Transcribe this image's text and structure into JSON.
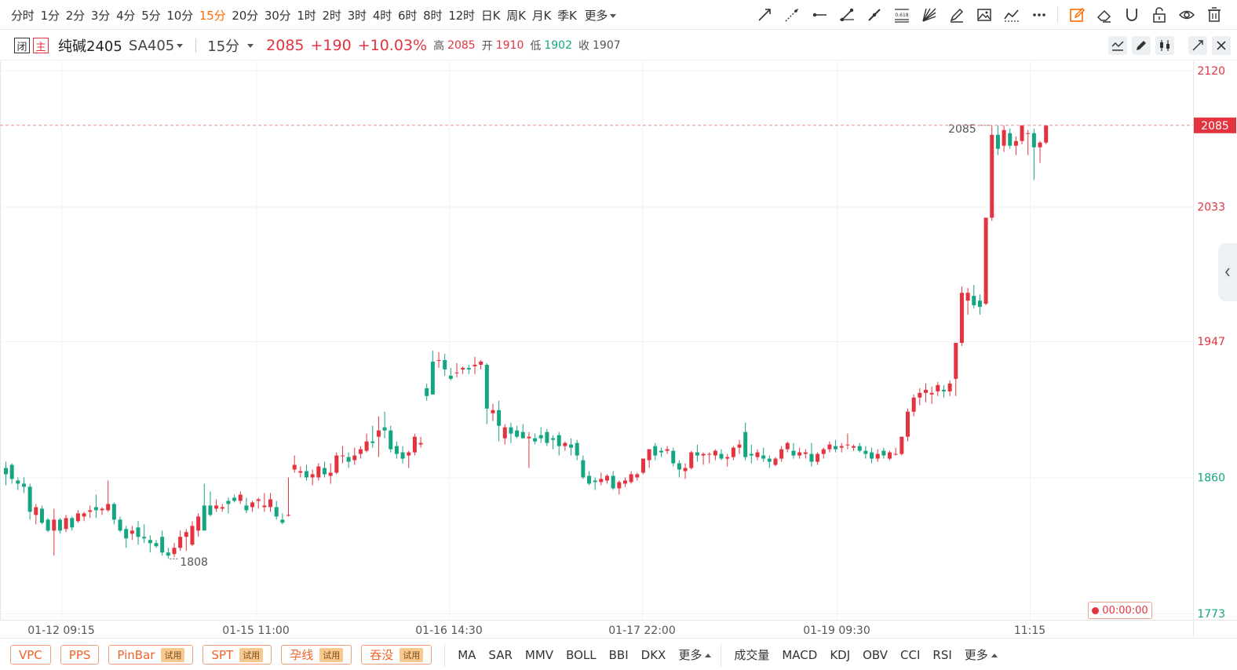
{
  "toolbar": {
    "periods": [
      "分时",
      "1分",
      "2分",
      "3分",
      "4分",
      "5分",
      "10分",
      "15分",
      "20分",
      "30分",
      "1时",
      "2时",
      "3时",
      "4时",
      "6时",
      "8时",
      "12时",
      "日K",
      "周K",
      "月K",
      "季K"
    ],
    "active_period": "15分",
    "more_label": "更多",
    "tools": [
      "trend-line-icon",
      "ray-line-icon",
      "horizontal-segment-icon",
      "segment-icon",
      "brush-line-icon",
      "fibonacci-icon",
      "gann-fan-icon",
      "pen-icon",
      "image-icon",
      "polyline-icon",
      "more-dots-icon",
      "edit-icon",
      "eraser-icon",
      "magnet-icon",
      "lock-icon",
      "eye-icon",
      "trash-icon"
    ],
    "fib_text": "0.618",
    "accent_color": "#ff6a00"
  },
  "symbol": {
    "badge_closed": "闭",
    "badge_main": "主",
    "name": "纯碱2405",
    "code": "SA405",
    "timeframe": "15分",
    "price": "2085",
    "change": "+190",
    "change_pct": "+10.03%",
    "high_label": "高",
    "high": "2085",
    "open_label": "开",
    "open": "1910",
    "low_label": "低",
    "low": "1902",
    "close_label": "收",
    "close": "1907"
  },
  "chart_data": {
    "type": "candlestick",
    "x_labels": [
      "01-12 09:15",
      "01-15 11:00",
      "01-16 14:30",
      "01-17 22:00",
      "01-19 09:30",
      "11:15"
    ],
    "y_ticks": [
      2120,
      2033,
      1947,
      1860,
      1773
    ],
    "y_range": [
      1773,
      2120
    ],
    "last_price": 2085,
    "annotations": {
      "max": "2085",
      "min": "1808"
    },
    "timer": "00:00:00",
    "colors": {
      "up": "#e2333f",
      "down": "#14a582",
      "grid": "#f0f2f5",
      "last_line": "#f08a8a"
    },
    "candles": [
      {
        "o": 1866,
        "h": 1870,
        "l": 1855,
        "c": 1862
      },
      {
        "o": 1868,
        "h": 1869,
        "l": 1856,
        "c": 1859
      },
      {
        "o": 1858,
        "h": 1860,
        "l": 1852,
        "c": 1856
      },
      {
        "o": 1856,
        "h": 1860,
        "l": 1850,
        "c": 1854
      },
      {
        "o": 1854,
        "h": 1856,
        "l": 1833,
        "c": 1838
      },
      {
        "o": 1836,
        "h": 1843,
        "l": 1830,
        "c": 1841
      },
      {
        "o": 1840,
        "h": 1842,
        "l": 1830,
        "c": 1831
      },
      {
        "o": 1833,
        "h": 1834,
        "l": 1825,
        "c": 1826
      },
      {
        "o": 1826,
        "h": 1840,
        "l": 1810,
        "c": 1833
      },
      {
        "o": 1833,
        "h": 1834,
        "l": 1824,
        "c": 1826
      },
      {
        "o": 1827,
        "h": 1836,
        "l": 1825,
        "c": 1834
      },
      {
        "o": 1834,
        "h": 1835,
        "l": 1826,
        "c": 1828
      },
      {
        "o": 1832,
        "h": 1839,
        "l": 1831,
        "c": 1837
      },
      {
        "o": 1835,
        "h": 1838,
        "l": 1832,
        "c": 1837
      },
      {
        "o": 1838,
        "h": 1842,
        "l": 1834,
        "c": 1839
      },
      {
        "o": 1841,
        "h": 1849,
        "l": 1834,
        "c": 1839
      },
      {
        "o": 1839,
        "h": 1841,
        "l": 1836,
        "c": 1840
      },
      {
        "o": 1839,
        "h": 1858,
        "l": 1838,
        "c": 1843
      },
      {
        "o": 1843,
        "h": 1844,
        "l": 1830,
        "c": 1833
      },
      {
        "o": 1833,
        "h": 1835,
        "l": 1825,
        "c": 1826
      },
      {
        "o": 1827,
        "h": 1829,
        "l": 1815,
        "c": 1821
      },
      {
        "o": 1824,
        "h": 1829,
        "l": 1820,
        "c": 1826
      },
      {
        "o": 1828,
        "h": 1832,
        "l": 1817,
        "c": 1822
      },
      {
        "o": 1822,
        "h": 1830,
        "l": 1818,
        "c": 1821
      },
      {
        "o": 1820,
        "h": 1823,
        "l": 1812,
        "c": 1818
      },
      {
        "o": 1818,
        "h": 1820,
        "l": 1815,
        "c": 1816
      },
      {
        "o": 1822,
        "h": 1826,
        "l": 1810,
        "c": 1812
      },
      {
        "o": 1812,
        "h": 1815,
        "l": 1808,
        "c": 1810
      },
      {
        "o": 1811,
        "h": 1818,
        "l": 1809,
        "c": 1815
      },
      {
        "o": 1815,
        "h": 1826,
        "l": 1813,
        "c": 1822
      },
      {
        "o": 1822,
        "h": 1827,
        "l": 1813,
        "c": 1825
      },
      {
        "o": 1817,
        "h": 1832,
        "l": 1816,
        "c": 1829
      },
      {
        "o": 1826,
        "h": 1837,
        "l": 1822,
        "c": 1835
      },
      {
        "o": 1842,
        "h": 1856,
        "l": 1828,
        "c": 1826
      },
      {
        "o": 1842,
        "h": 1851,
        "l": 1835,
        "c": 1836
      },
      {
        "o": 1840,
        "h": 1846,
        "l": 1838,
        "c": 1842
      },
      {
        "o": 1840,
        "h": 1843,
        "l": 1838,
        "c": 1841
      },
      {
        "o": 1845,
        "h": 1847,
        "l": 1837,
        "c": 1843
      },
      {
        "o": 1847,
        "h": 1849,
        "l": 1844,
        "c": 1845
      },
      {
        "o": 1845,
        "h": 1851,
        "l": 1843,
        "c": 1849
      },
      {
        "o": 1842,
        "h": 1847,
        "l": 1837,
        "c": 1839
      },
      {
        "o": 1841,
        "h": 1845,
        "l": 1838,
        "c": 1844
      },
      {
        "o": 1845,
        "h": 1847,
        "l": 1840,
        "c": 1846
      },
      {
        "o": 1841,
        "h": 1850,
        "l": 1838,
        "c": 1842
      },
      {
        "o": 1841,
        "h": 1850,
        "l": 1838,
        "c": 1846
      },
      {
        "o": 1841,
        "h": 1845,
        "l": 1833,
        "c": 1835
      },
      {
        "o": 1833,
        "h": 1837,
        "l": 1830,
        "c": 1831
      },
      {
        "o": 1836,
        "h": 1860,
        "l": 1835,
        "c": 1836
      },
      {
        "o": 1865,
        "h": 1874,
        "l": 1863,
        "c": 1868
      },
      {
        "o": 1863,
        "h": 1867,
        "l": 1860,
        "c": 1864
      },
      {
        "o": 1864,
        "h": 1868,
        "l": 1858,
        "c": 1860
      },
      {
        "o": 1860,
        "h": 1865,
        "l": 1855,
        "c": 1862
      },
      {
        "o": 1860,
        "h": 1869,
        "l": 1858,
        "c": 1867
      },
      {
        "o": 1866,
        "h": 1870,
        "l": 1860,
        "c": 1862
      },
      {
        "o": 1861,
        "h": 1869,
        "l": 1856,
        "c": 1863
      },
      {
        "o": 1863,
        "h": 1876,
        "l": 1862,
        "c": 1874
      },
      {
        "o": 1874,
        "h": 1880,
        "l": 1869,
        "c": 1874
      },
      {
        "o": 1873,
        "h": 1876,
        "l": 1866,
        "c": 1870
      },
      {
        "o": 1871,
        "h": 1879,
        "l": 1868,
        "c": 1874
      },
      {
        "o": 1875,
        "h": 1880,
        "l": 1872,
        "c": 1878
      },
      {
        "o": 1877,
        "h": 1888,
        "l": 1876,
        "c": 1883
      },
      {
        "o": 1883,
        "h": 1893,
        "l": 1879,
        "c": 1882
      },
      {
        "o": 1886,
        "h": 1899,
        "l": 1873,
        "c": 1890
      },
      {
        "o": 1892,
        "h": 1902,
        "l": 1885,
        "c": 1890
      },
      {
        "o": 1890,
        "h": 1893,
        "l": 1876,
        "c": 1878
      },
      {
        "o": 1880,
        "h": 1883,
        "l": 1872,
        "c": 1875
      },
      {
        "o": 1876,
        "h": 1880,
        "l": 1869,
        "c": 1872
      },
      {
        "o": 1874,
        "h": 1877,
        "l": 1866,
        "c": 1876
      },
      {
        "o": 1876,
        "h": 1888,
        "l": 1874,
        "c": 1886
      },
      {
        "o": 1881,
        "h": 1886,
        "l": 1879,
        "c": 1882
      },
      {
        "o": 1917,
        "h": 1920,
        "l": 1909,
        "c": 1912
      },
      {
        "o": 1934,
        "h": 1941,
        "l": 1913,
        "c": 1913
      },
      {
        "o": 1935,
        "h": 1940,
        "l": 1930,
        "c": 1935
      },
      {
        "o": 1935,
        "h": 1939,
        "l": 1925,
        "c": 1929
      },
      {
        "o": 1925,
        "h": 1930,
        "l": 1922,
        "c": 1923
      },
      {
        "o": 1927,
        "h": 1933,
        "l": 1924,
        "c": 1927
      },
      {
        "o": 1929,
        "h": 1931,
        "l": 1926,
        "c": 1930
      },
      {
        "o": 1930,
        "h": 1932,
        "l": 1926,
        "c": 1929
      },
      {
        "o": 1931,
        "h": 1937,
        "l": 1926,
        "c": 1932
      },
      {
        "o": 1932,
        "h": 1935,
        "l": 1929,
        "c": 1934
      },
      {
        "o": 1932,
        "h": 1933,
        "l": 1894,
        "c": 1904
      },
      {
        "o": 1901,
        "h": 1907,
        "l": 1896,
        "c": 1903
      },
      {
        "o": 1903,
        "h": 1909,
        "l": 1883,
        "c": 1893
      },
      {
        "o": 1885,
        "h": 1894,
        "l": 1881,
        "c": 1892
      },
      {
        "o": 1892,
        "h": 1895,
        "l": 1882,
        "c": 1888
      },
      {
        "o": 1890,
        "h": 1893,
        "l": 1885,
        "c": 1886
      },
      {
        "o": 1889,
        "h": 1894,
        "l": 1886,
        "c": 1885
      },
      {
        "o": 1885,
        "h": 1889,
        "l": 1866,
        "c": 1886
      },
      {
        "o": 1885,
        "h": 1888,
        "l": 1881,
        "c": 1883
      },
      {
        "o": 1887,
        "h": 1892,
        "l": 1882,
        "c": 1885
      },
      {
        "o": 1889,
        "h": 1891,
        "l": 1880,
        "c": 1882
      },
      {
        "o": 1885,
        "h": 1887,
        "l": 1878,
        "c": 1884
      },
      {
        "o": 1887,
        "h": 1889,
        "l": 1874,
        "c": 1880
      },
      {
        "o": 1880,
        "h": 1883,
        "l": 1877,
        "c": 1882
      },
      {
        "o": 1881,
        "h": 1885,
        "l": 1874,
        "c": 1879
      },
      {
        "o": 1882,
        "h": 1884,
        "l": 1871,
        "c": 1874
      },
      {
        "o": 1871,
        "h": 1874,
        "l": 1859,
        "c": 1860
      },
      {
        "o": 1861,
        "h": 1864,
        "l": 1855,
        "c": 1856
      },
      {
        "o": 1858,
        "h": 1860,
        "l": 1852,
        "c": 1857
      },
      {
        "o": 1857,
        "h": 1863,
        "l": 1855,
        "c": 1859
      },
      {
        "o": 1858,
        "h": 1862,
        "l": 1856,
        "c": 1861
      },
      {
        "o": 1861,
        "h": 1864,
        "l": 1852,
        "c": 1853
      },
      {
        "o": 1853,
        "h": 1858,
        "l": 1849,
        "c": 1857
      },
      {
        "o": 1856,
        "h": 1860,
        "l": 1854,
        "c": 1858
      },
      {
        "o": 1857,
        "h": 1864,
        "l": 1856,
        "c": 1862
      },
      {
        "o": 1860,
        "h": 1863,
        "l": 1858,
        "c": 1862
      },
      {
        "o": 1863,
        "h": 1872,
        "l": 1862,
        "c": 1872
      },
      {
        "o": 1871,
        "h": 1878,
        "l": 1866,
        "c": 1878
      },
      {
        "o": 1880,
        "h": 1882,
        "l": 1871,
        "c": 1874
      },
      {
        "o": 1877,
        "h": 1879,
        "l": 1873,
        "c": 1876
      },
      {
        "o": 1877,
        "h": 1880,
        "l": 1875,
        "c": 1878
      },
      {
        "o": 1877,
        "h": 1879,
        "l": 1867,
        "c": 1869
      },
      {
        "o": 1869,
        "h": 1871,
        "l": 1860,
        "c": 1865
      },
      {
        "o": 1864,
        "h": 1869,
        "l": 1859,
        "c": 1866
      },
      {
        "o": 1866,
        "h": 1877,
        "l": 1865,
        "c": 1876
      },
      {
        "o": 1876,
        "h": 1881,
        "l": 1870,
        "c": 1874
      },
      {
        "o": 1874,
        "h": 1876,
        "l": 1868,
        "c": 1875
      },
      {
        "o": 1875,
        "h": 1876,
        "l": 1869,
        "c": 1875
      },
      {
        "o": 1874,
        "h": 1878,
        "l": 1871,
        "c": 1877
      },
      {
        "o": 1875,
        "h": 1878,
        "l": 1871,
        "c": 1872
      },
      {
        "o": 1872,
        "h": 1875,
        "l": 1867,
        "c": 1873
      },
      {
        "o": 1873,
        "h": 1880,
        "l": 1871,
        "c": 1879
      },
      {
        "o": 1879,
        "h": 1884,
        "l": 1875,
        "c": 1881
      },
      {
        "o": 1889,
        "h": 1895,
        "l": 1871,
        "c": 1873
      },
      {
        "o": 1875,
        "h": 1881,
        "l": 1869,
        "c": 1874
      },
      {
        "o": 1873,
        "h": 1878,
        "l": 1871,
        "c": 1876
      },
      {
        "o": 1874,
        "h": 1879,
        "l": 1870,
        "c": 1872
      },
      {
        "o": 1872,
        "h": 1874,
        "l": 1866,
        "c": 1870
      },
      {
        "o": 1868,
        "h": 1873,
        "l": 1867,
        "c": 1872
      },
      {
        "o": 1872,
        "h": 1880,
        "l": 1870,
        "c": 1878
      },
      {
        "o": 1878,
        "h": 1883,
        "l": 1876,
        "c": 1882
      },
      {
        "o": 1877,
        "h": 1882,
        "l": 1872,
        "c": 1874
      },
      {
        "o": 1874,
        "h": 1879,
        "l": 1872,
        "c": 1876
      },
      {
        "o": 1875,
        "h": 1878,
        "l": 1872,
        "c": 1876
      },
      {
        "o": 1875,
        "h": 1882,
        "l": 1867,
        "c": 1870
      },
      {
        "o": 1870,
        "h": 1876,
        "l": 1868,
        "c": 1875
      },
      {
        "o": 1875,
        "h": 1879,
        "l": 1872,
        "c": 1878
      },
      {
        "o": 1878,
        "h": 1883,
        "l": 1876,
        "c": 1881
      },
      {
        "o": 1880,
        "h": 1884,
        "l": 1876,
        "c": 1878
      },
      {
        "o": 1879,
        "h": 1882,
        "l": 1876,
        "c": 1880
      },
      {
        "o": 1881,
        "h": 1888,
        "l": 1878,
        "c": 1881
      },
      {
        "o": 1879,
        "h": 1881,
        "l": 1877,
        "c": 1880
      },
      {
        "o": 1880,
        "h": 1882,
        "l": 1876,
        "c": 1877
      },
      {
        "o": 1877,
        "h": 1880,
        "l": 1872,
        "c": 1875
      },
      {
        "o": 1876,
        "h": 1879,
        "l": 1869,
        "c": 1872
      },
      {
        "o": 1872,
        "h": 1878,
        "l": 1870,
        "c": 1875
      },
      {
        "o": 1877,
        "h": 1879,
        "l": 1872,
        "c": 1874
      },
      {
        "o": 1872,
        "h": 1877,
        "l": 1871,
        "c": 1876
      },
      {
        "o": 1875,
        "h": 1879,
        "l": 1874,
        "c": 1875
      },
      {
        "o": 1875,
        "h": 1886,
        "l": 1874,
        "c": 1886
      },
      {
        "o": 1886,
        "h": 1904,
        "l": 1883,
        "c": 1902
      },
      {
        "o": 1902,
        "h": 1913,
        "l": 1899,
        "c": 1911
      },
      {
        "o": 1911,
        "h": 1917,
        "l": 1906,
        "c": 1914
      },
      {
        "o": 1914,
        "h": 1920,
        "l": 1908,
        "c": 1916
      },
      {
        "o": 1913,
        "h": 1918,
        "l": 1907,
        "c": 1914
      },
      {
        "o": 1915,
        "h": 1921,
        "l": 1912,
        "c": 1919
      },
      {
        "o": 1916,
        "h": 1919,
        "l": 1911,
        "c": 1915
      },
      {
        "o": 1915,
        "h": 1922,
        "l": 1912,
        "c": 1920
      },
      {
        "o": 1923,
        "h": 1946,
        "l": 1912,
        "c": 1946
      },
      {
        "o": 1946,
        "h": 1982,
        "l": 1944,
        "c": 1978
      },
      {
        "o": 1973,
        "h": 1981,
        "l": 1964,
        "c": 1978
      },
      {
        "o": 1976,
        "h": 1983,
        "l": 1968,
        "c": 1970
      },
      {
        "o": 1973,
        "h": 1977,
        "l": 1964,
        "c": 1969
      },
      {
        "o": 1971,
        "h": 2026,
        "l": 1970,
        "c": 2026
      },
      {
        "o": 2026,
        "h": 2085,
        "l": 2024,
        "c": 2079
      },
      {
        "o": 2079,
        "h": 2085,
        "l": 2066,
        "c": 2070
      },
      {
        "o": 2072,
        "h": 2085,
        "l": 2068,
        "c": 2082
      },
      {
        "o": 2080,
        "h": 2083,
        "l": 2070,
        "c": 2072
      },
      {
        "o": 2072,
        "h": 2078,
        "l": 2066,
        "c": 2075
      },
      {
        "o": 2075,
        "h": 2085,
        "l": 2073,
        "c": 2085
      },
      {
        "o": 2080,
        "h": 2082,
        "l": 2066,
        "c": 2080
      },
      {
        "o": 2080,
        "h": 2083,
        "l": 2050,
        "c": 2071
      },
      {
        "o": 2071,
        "h": 2075,
        "l": 2061,
        "c": 2074
      },
      {
        "o": 2074,
        "h": 2085,
        "l": 2073,
        "c": 2085
      }
    ]
  },
  "bottom": {
    "indicators": [
      {
        "label": "VPC",
        "trial": ""
      },
      {
        "label": "PPS",
        "trial": ""
      },
      {
        "label": "PinBar",
        "trial": "试用"
      },
      {
        "label": "SPT",
        "trial": "试用"
      },
      {
        "label": "孕线",
        "trial": "试用"
      },
      {
        "label": "吞没",
        "trial": "试用"
      }
    ],
    "main": [
      "MA",
      "SAR",
      "MMV",
      "BOLL",
      "BBI",
      "DKX"
    ],
    "main_more": "更多",
    "sub": [
      "成交量",
      "MACD",
      "KDJ",
      "OBV",
      "CCI",
      "RSI"
    ],
    "sub_more": "更多"
  }
}
